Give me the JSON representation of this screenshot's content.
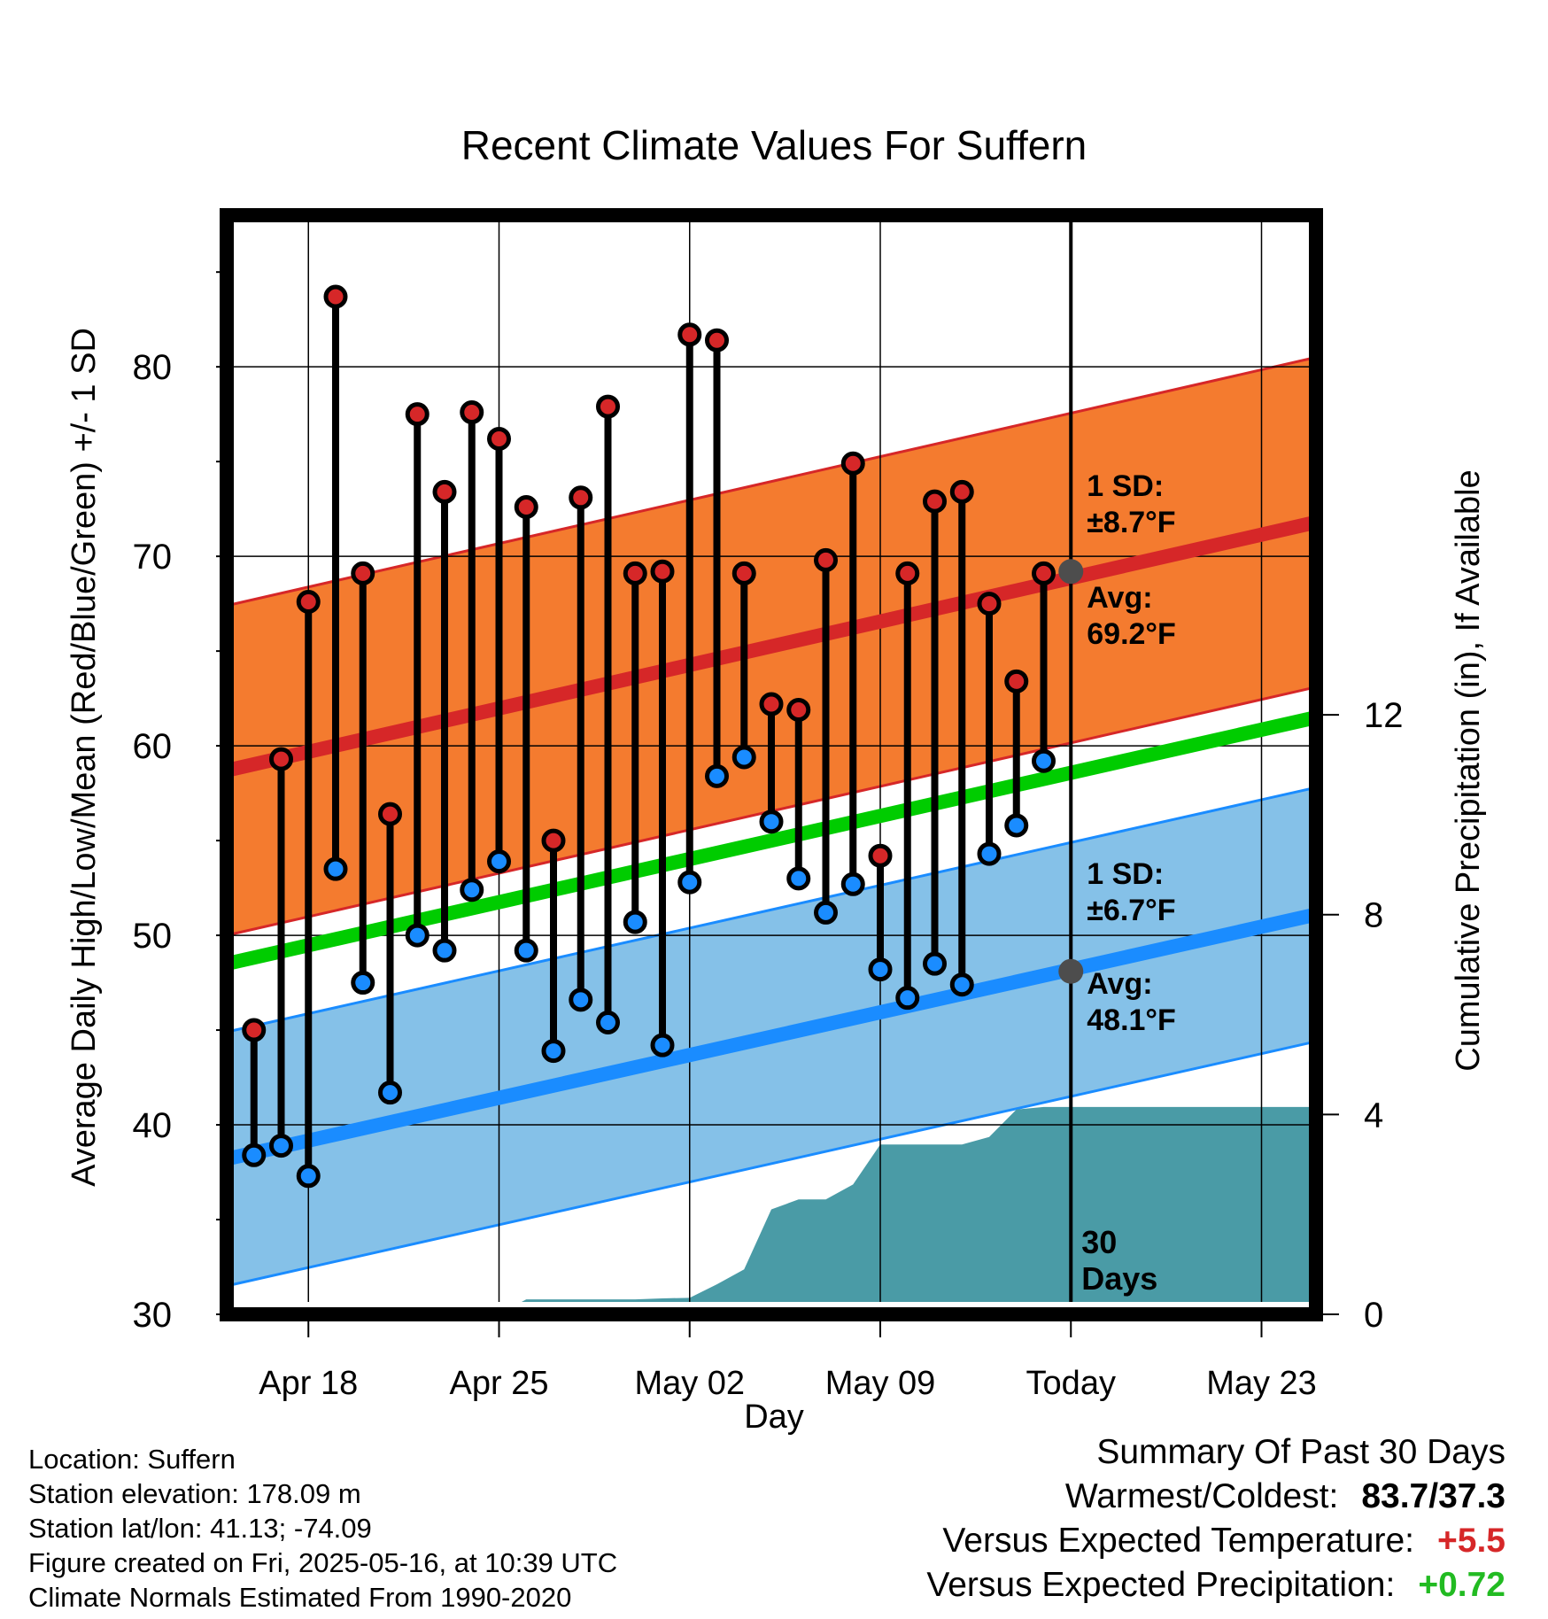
{
  "chart_data": {
    "type": "line",
    "title": "Recent Climate Values For Suffern",
    "xlabel": "Day",
    "ylabel": "Average Daily High/Low/Mean (Red/Blue/Green) +/- 1 SD",
    "y2label": "Cumulative Precipitation (in), If Available",
    "ylim": [
      30,
      88
    ],
    "y2lim": [
      0,
      22
    ],
    "yticks": [
      30,
      40,
      50,
      60,
      70,
      80
    ],
    "y2ticks": [
      0,
      4,
      8,
      12
    ],
    "x_range_dates": [
      "2025-04-15",
      "2025-05-25"
    ],
    "x_tick_labels": [
      {
        "date": "2025-04-18",
        "label": "Apr 18"
      },
      {
        "date": "2025-04-25",
        "label": "Apr 25"
      },
      {
        "date": "2025-05-02",
        "label": "May 02"
      },
      {
        "date": "2025-05-09",
        "label": "May 09"
      },
      {
        "date": "2025-05-16",
        "label": "Today"
      },
      {
        "date": "2025-05-23",
        "label": "May 23"
      }
    ],
    "today_date": "2025-05-16",
    "today_label": [
      "30",
      "Days"
    ],
    "grid": true,
    "normals": {
      "high_mean": {
        "start": 58.7,
        "end": 71.8,
        "sd": 8.7,
        "color": "#d62728",
        "band_color": "#f47b2f"
      },
      "low_mean": {
        "start": 38.2,
        "end": 51.1,
        "sd": 6.7,
        "color": "#1a8cff",
        "band_color": "#85c1e8"
      },
      "daily_mean": {
        "start": 48.5,
        "end": 61.5,
        "color": "#00cc00"
      }
    },
    "annotations": {
      "high_sd": [
        "1 SD:",
        "±8.7°F"
      ],
      "high_avg": [
        "Avg:",
        "69.2°F"
      ],
      "high_avg_value": 69.2,
      "low_sd": [
        "1 SD:",
        "±6.7°F"
      ],
      "low_avg": [
        "Avg:",
        "48.1°F"
      ],
      "low_avg_value": 48.1
    },
    "series": [
      {
        "name": "High",
        "color": "#d62728",
        "points": [
          {
            "date": "2025-04-16",
            "y": 45.0
          },
          {
            "date": "2025-04-17",
            "y": 59.3
          },
          {
            "date": "2025-04-18",
            "y": 67.6
          },
          {
            "date": "2025-04-19",
            "y": 83.7
          },
          {
            "date": "2025-04-20",
            "y": 69.1
          },
          {
            "date": "2025-04-21",
            "y": 56.4
          },
          {
            "date": "2025-04-22",
            "y": 77.5
          },
          {
            "date": "2025-04-23",
            "y": 73.4
          },
          {
            "date": "2025-04-24",
            "y": 77.6
          },
          {
            "date": "2025-04-25",
            "y": 76.2
          },
          {
            "date": "2025-04-26",
            "y": 72.6
          },
          {
            "date": "2025-04-27",
            "y": 55.0
          },
          {
            "date": "2025-04-28",
            "y": 73.1
          },
          {
            "date": "2025-04-29",
            "y": 77.9
          },
          {
            "date": "2025-04-30",
            "y": 69.1
          },
          {
            "date": "2025-05-01",
            "y": 69.2
          },
          {
            "date": "2025-05-02",
            "y": 81.7
          },
          {
            "date": "2025-05-03",
            "y": 81.4
          },
          {
            "date": "2025-05-04",
            "y": 69.1
          },
          {
            "date": "2025-05-05",
            "y": 62.2
          },
          {
            "date": "2025-05-06",
            "y": 61.9
          },
          {
            "date": "2025-05-07",
            "y": 69.8
          },
          {
            "date": "2025-05-08",
            "y": 74.9
          },
          {
            "date": "2025-05-09",
            "y": 54.2
          },
          {
            "date": "2025-05-10",
            "y": 69.1
          },
          {
            "date": "2025-05-11",
            "y": 72.9
          },
          {
            "date": "2025-05-12",
            "y": 73.4
          },
          {
            "date": "2025-05-13",
            "y": 67.5
          },
          {
            "date": "2025-05-14",
            "y": 63.4
          },
          {
            "date": "2025-05-15",
            "y": 69.1
          }
        ]
      },
      {
        "name": "Low",
        "color": "#1a8cff",
        "points": [
          {
            "date": "2025-04-16",
            "y": 38.4
          },
          {
            "date": "2025-04-17",
            "y": 38.9
          },
          {
            "date": "2025-04-18",
            "y": 37.3
          },
          {
            "date": "2025-04-19",
            "y": 53.5
          },
          {
            "date": "2025-04-20",
            "y": 47.5
          },
          {
            "date": "2025-04-21",
            "y": 41.7
          },
          {
            "date": "2025-04-22",
            "y": 50.0
          },
          {
            "date": "2025-04-23",
            "y": 49.2
          },
          {
            "date": "2025-04-24",
            "y": 52.4
          },
          {
            "date": "2025-04-25",
            "y": 53.9
          },
          {
            "date": "2025-04-26",
            "y": 49.2
          },
          {
            "date": "2025-04-27",
            "y": 43.9
          },
          {
            "date": "2025-04-28",
            "y": 46.6
          },
          {
            "date": "2025-04-29",
            "y": 45.4
          },
          {
            "date": "2025-04-30",
            "y": 50.7
          },
          {
            "date": "2025-05-01",
            "y": 44.2
          },
          {
            "date": "2025-05-02",
            "y": 52.8
          },
          {
            "date": "2025-05-03",
            "y": 58.4
          },
          {
            "date": "2025-05-04",
            "y": 59.4
          },
          {
            "date": "2025-05-05",
            "y": 56.0
          },
          {
            "date": "2025-05-06",
            "y": 53.0
          },
          {
            "date": "2025-05-07",
            "y": 51.2
          },
          {
            "date": "2025-05-08",
            "y": 52.7
          },
          {
            "date": "2025-05-09",
            "y": 48.2
          },
          {
            "date": "2025-05-10",
            "y": 46.7
          },
          {
            "date": "2025-05-11",
            "y": 48.5
          },
          {
            "date": "2025-05-12",
            "y": 47.4
          },
          {
            "date": "2025-05-13",
            "y": 54.3
          },
          {
            "date": "2025-05-14",
            "y": 55.8
          },
          {
            "date": "2025-05-15",
            "y": 59.2
          }
        ]
      },
      {
        "name": "Cumulative Precipitation",
        "color": "#4a9ba6",
        "points": [
          {
            "date": "2025-04-15",
            "y": 0.0
          },
          {
            "date": "2025-04-25",
            "y": 0.0
          },
          {
            "date": "2025-04-26",
            "y": 0.3
          },
          {
            "date": "2025-04-27",
            "y": 0.3
          },
          {
            "date": "2025-04-28",
            "y": 0.3
          },
          {
            "date": "2025-04-29",
            "y": 0.3
          },
          {
            "date": "2025-04-30",
            "y": 0.3
          },
          {
            "date": "2025-05-01",
            "y": 0.32
          },
          {
            "date": "2025-05-02",
            "y": 0.33
          },
          {
            "date": "2025-05-03",
            "y": 0.6
          },
          {
            "date": "2025-05-04",
            "y": 0.9
          },
          {
            "date": "2025-05-05",
            "y": 2.1
          },
          {
            "date": "2025-05-06",
            "y": 2.3
          },
          {
            "date": "2025-05-07",
            "y": 2.3
          },
          {
            "date": "2025-05-08",
            "y": 2.6
          },
          {
            "date": "2025-05-09",
            "y": 3.4
          },
          {
            "date": "2025-05-10",
            "y": 3.4
          },
          {
            "date": "2025-05-11",
            "y": 3.4
          },
          {
            "date": "2025-05-12",
            "y": 3.4
          },
          {
            "date": "2025-05-13",
            "y": 3.55
          },
          {
            "date": "2025-05-14",
            "y": 4.1
          },
          {
            "date": "2025-05-15",
            "y": 4.15
          },
          {
            "date": "2025-05-16",
            "y": 4.15
          },
          {
            "date": "2025-05-25",
            "y": 4.15
          }
        ]
      }
    ]
  },
  "info": {
    "location": "Location: Suffern",
    "elevation": "Station elevation: 178.09 m",
    "latlon": "Station lat/lon: 41.13; -74.09",
    "created": "Figure created on Fri, 2025-05-16, at 10:39 UTC",
    "normals": "Climate Normals Estimated From 1990-2020"
  },
  "summary": {
    "heading": "Summary Of Past 30 Days",
    "warmest_label": "Warmest/Coldest:",
    "warmest_value": "83.7/37.3",
    "temp_label": "Versus Expected Temperature:",
    "temp_value": "+5.5",
    "temp_color": "#d62728",
    "precip_label": "Versus Expected Precipitation:",
    "precip_value": "+0.72",
    "precip_color": "#22bb22"
  }
}
